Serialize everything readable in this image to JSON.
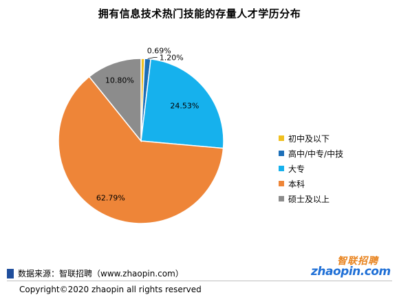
{
  "title": "拥有信息技术热门技能的存量人才学历分布",
  "chart_data": {
    "type": "pie",
    "title": "拥有信息技术热门技能的存量人才学历分布",
    "slices": [
      {
        "label": "初中及以下",
        "value": 0.69,
        "display": "0.69%",
        "color": "#f0c020"
      },
      {
        "label": "高中/中专/中技",
        "value": 1.2,
        "display": "1.20%",
        "color": "#1c6fb8"
      },
      {
        "label": "大专",
        "value": 24.53,
        "display": "24.53%",
        "color": "#16b1ed"
      },
      {
        "label": "本科",
        "value": 62.79,
        "display": "62.79%",
        "color": "#ee8538"
      },
      {
        "label": "硕士及以上",
        "value": 10.8,
        "display": "10.80%",
        "color": "#8c8c8c"
      }
    ],
    "legend_position": "right"
  },
  "source": "数据来源：智联招聘（www.zhaopin.com）",
  "copyright": "Copyright©2020 zhaopin all rights reserved",
  "logo": {
    "top": "智联招聘",
    "bottom": "zhaopin.com"
  }
}
